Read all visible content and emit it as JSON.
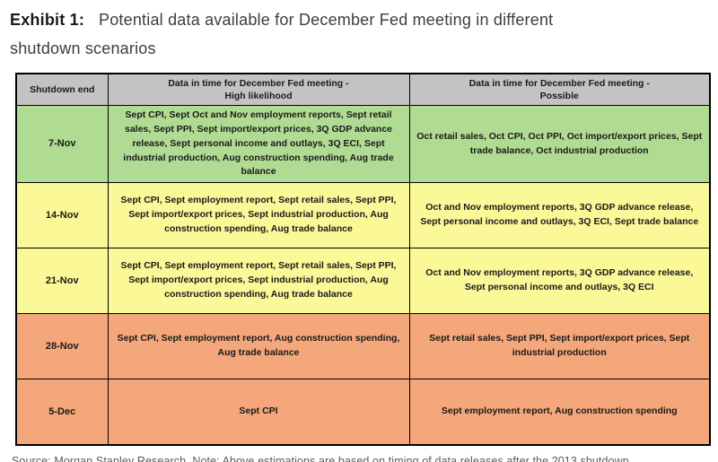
{
  "title": {
    "label": "Exhibit 1:",
    "line1": "Potential data available for December Fed meeting in different",
    "line2": "shutdown scenarios"
  },
  "table": {
    "headers": {
      "shutdown_end": "Shutdown end",
      "high_likelihood": "Data in time for December Fed meeting -\nHigh likelihood",
      "possible": "Data in time for December Fed meeting -\nPossible"
    },
    "rows": [
      {
        "date": "7-Nov",
        "color": "green",
        "high": "Sept CPI, Sept Oct and Nov employment reports, Sept retail sales, Sept PPI, Sept import/export prices, 3Q GDP advance release, Sept personal income and outlays, 3Q ECI, Sept industrial production, Aug construction spending, Aug trade balance",
        "possible": "Oct retail sales, Oct CPI, Oct PPI, Oct import/export prices, Sept trade balance, Oct industrial production"
      },
      {
        "date": "14-Nov",
        "color": "yellow",
        "high": "Sept CPI, Sept employment report, Sept retail sales, Sept PPI, Sept import/export prices, Sept industrial production, Aug construction spending, Aug trade balance",
        "possible": "Oct and Nov employment reports, 3Q GDP advance release, Sept personal income and outlays, 3Q ECI, Sept trade balance"
      },
      {
        "date": "21-Nov",
        "color": "yellow",
        "high": "Sept CPI, Sept employment report, Sept retail sales, Sept PPI, Sept import/export prices, Sept industrial production, Aug construction spending, Aug trade balance",
        "possible": "Oct and Nov employment reports, 3Q GDP advance release, Sept personal income and outlays, 3Q ECI"
      },
      {
        "date": "28-Nov",
        "color": "salmon",
        "high": "Sept CPI, Sept employment report, Aug construction spending, Aug trade balance",
        "possible": "Sept retail sales, Sept PPI, Sept import/export prices, Sept industrial production"
      },
      {
        "date": "5-Dec",
        "color": "salmon",
        "high": "Sept CPI",
        "possible": "Sept employment report, Aug construction spending"
      }
    ]
  },
  "colors": {
    "green": "#b0db93",
    "yellow": "#fbf898",
    "salmon": "#f3a77a",
    "header": "#c3c3c3",
    "border": "#000000"
  },
  "footer": "Source: Morgan Stanley Research. Note: Above estimations are based on timing of data releases after the 2013 shutdown."
}
